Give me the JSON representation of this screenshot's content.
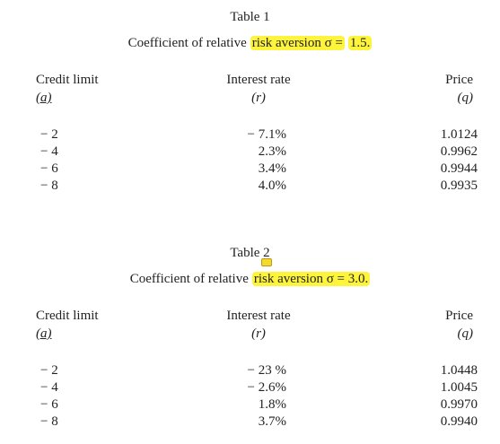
{
  "tables": [
    {
      "label": "Table 1",
      "caption": "Coefficient of relative",
      "highlights": [
        "risk aversion σ =",
        "1.5."
      ],
      "columns": [
        {
          "name": "Credit limit",
          "symbol": "(a)"
        },
        {
          "name": "Interest rate",
          "symbol": "(r)"
        },
        {
          "name": "Price",
          "symbol": "(q)"
        }
      ],
      "rows": [
        [
          "− 2",
          "− 7.1%",
          "1.0124"
        ],
        [
          "− 4",
          "2.3%",
          "0.9962"
        ],
        [
          "− 6",
          "3.4%",
          "0.9944"
        ],
        [
          "− 8",
          "4.0%",
          "0.9935"
        ]
      ]
    },
    {
      "label": "Table 2",
      "caption": "Coefficient of relative",
      "highlights": [
        "risk aversion σ = 3.0."
      ],
      "columns": [
        {
          "name": "Credit limit",
          "symbol": "(a)"
        },
        {
          "name": "Interest rate",
          "symbol": "(r)"
        },
        {
          "name": "Price",
          "symbol": "(q)"
        }
      ],
      "rows": [
        [
          "− 2",
          "− 23 %",
          "1.0448"
        ],
        [
          "− 4",
          "− 2.6%",
          "1.0045"
        ],
        [
          "− 6",
          "1.8%",
          "0.9970"
        ],
        [
          "− 8",
          "3.7%",
          "0.9940"
        ]
      ]
    }
  ]
}
